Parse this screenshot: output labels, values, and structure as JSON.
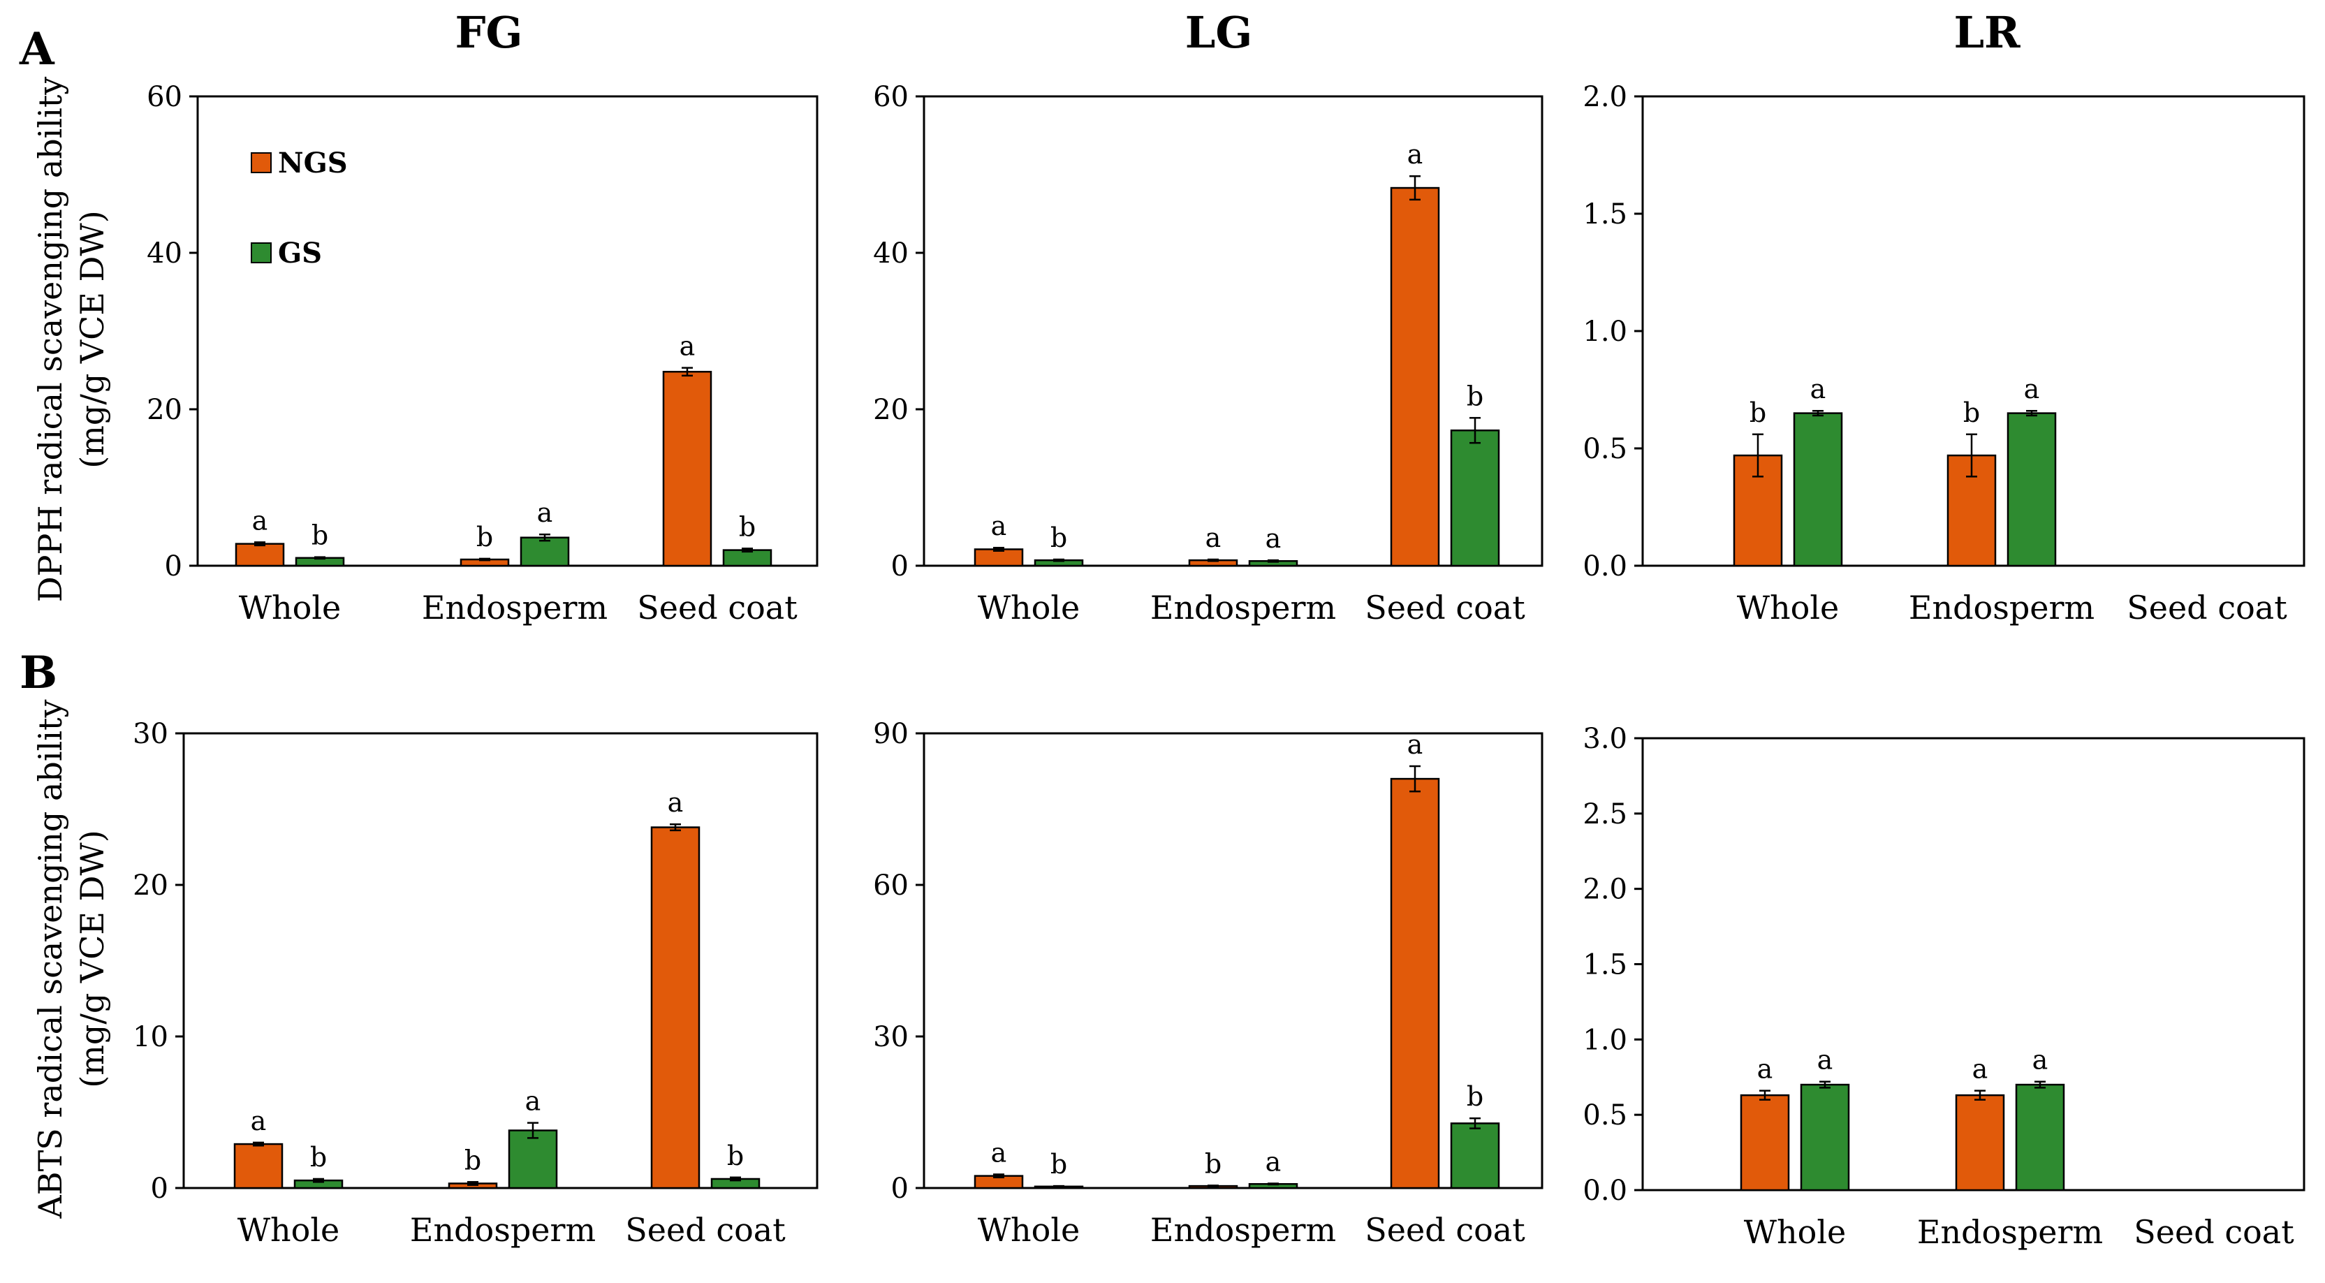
{
  "columns": [
    "FG",
    "LG",
    "LR"
  ],
  "panels": [
    "A",
    "B"
  ],
  "colors": {
    "NGS": "#E15A0A",
    "GS": "#2E8B30"
  },
  "chart_data": [
    {
      "type": "bar",
      "panel": "A",
      "column": "FG",
      "title": "FG",
      "categories": [
        "Whole",
        "Endosperm",
        "Seed coat"
      ],
      "ylabel": [
        "DPPH radical scavenging ability",
        "(mg/g VCE DW)"
      ],
      "ylim": [
        0,
        60
      ],
      "yticks": [
        "0",
        "20",
        "40",
        "60"
      ],
      "yticks_values": [
        0,
        20,
        40,
        60
      ],
      "legend": {
        "placement": "top-left",
        "entries": [
          "NGS",
          "GS"
        ]
      },
      "series": [
        {
          "name": "NGS",
          "values": [
            2.8,
            0.8,
            24.8
          ],
          "errors": [
            0.2,
            0.1,
            0.5
          ],
          "letters": [
            "a",
            "b",
            "a"
          ]
        },
        {
          "name": "GS",
          "values": [
            1.0,
            3.6,
            2.0
          ],
          "errors": [
            0.1,
            0.4,
            0.2
          ],
          "letters": [
            "b",
            "a",
            "b"
          ]
        }
      ]
    },
    {
      "type": "bar",
      "panel": "A",
      "column": "LG",
      "title": "LG",
      "categories": [
        "Whole",
        "Endosperm",
        "Seed coat"
      ],
      "ylim": [
        0,
        60
      ],
      "yticks": [
        "0",
        "20",
        "40",
        "60"
      ],
      "yticks_values": [
        0,
        20,
        40,
        60
      ],
      "series": [
        {
          "name": "NGS",
          "values": [
            2.1,
            0.7,
            48.3
          ],
          "errors": [
            0.2,
            0.1,
            1.5
          ],
          "letters": [
            "a",
            "a",
            "a"
          ]
        },
        {
          "name": "GS",
          "values": [
            0.7,
            0.6,
            17.3
          ],
          "errors": [
            0.1,
            0.1,
            1.6
          ],
          "letters": [
            "b",
            "a",
            "b"
          ]
        }
      ]
    },
    {
      "type": "bar",
      "panel": "A",
      "column": "LR",
      "title": "LR",
      "categories": [
        "Whole",
        "Endosperm",
        "Seed coat"
      ],
      "ylim": [
        0,
        2.0
      ],
      "yticks": [
        "0.0",
        "0.5",
        "1.0",
        "1.5",
        "2.0"
      ],
      "yticks_values": [
        0,
        0.5,
        1.0,
        1.5,
        2.0
      ],
      "series": [
        {
          "name": "NGS",
          "values": [
            0.47,
            0.47,
            null
          ],
          "errors": [
            0.09,
            0.09,
            null
          ],
          "letters": [
            "b",
            "b",
            ""
          ]
        },
        {
          "name": "GS",
          "values": [
            0.65,
            0.65,
            null
          ],
          "errors": [
            0.01,
            0.01,
            null
          ],
          "letters": [
            "a",
            "a",
            ""
          ]
        }
      ]
    },
    {
      "type": "bar",
      "panel": "B",
      "column": "FG",
      "categories": [
        "Whole",
        "Endosperm",
        "Seed coat"
      ],
      "ylabel": [
        "ABTS radical scavenging ability",
        "(mg/g VCE DW)"
      ],
      "ylim": [
        0,
        30
      ],
      "yticks": [
        "0",
        "10",
        "20",
        "30"
      ],
      "yticks_values": [
        0,
        10,
        20,
        30
      ],
      "series": [
        {
          "name": "NGS",
          "values": [
            2.9,
            0.3,
            23.8
          ],
          "errors": [
            0.1,
            0.1,
            0.2
          ],
          "letters": [
            "a",
            "b",
            "a"
          ]
        },
        {
          "name": "GS",
          "values": [
            0.5,
            3.8,
            0.6
          ],
          "errors": [
            0.1,
            0.5,
            0.1
          ],
          "letters": [
            "b",
            "a",
            "b"
          ]
        }
      ]
    },
    {
      "type": "bar",
      "panel": "B",
      "column": "LG",
      "categories": [
        "Whole",
        "Endosperm",
        "Seed coat"
      ],
      "ylim": [
        0,
        90
      ],
      "yticks": [
        "0",
        "30",
        "60",
        "90"
      ],
      "yticks_values": [
        0,
        30,
        60,
        90
      ],
      "series": [
        {
          "name": "NGS",
          "values": [
            2.4,
            0.4,
            81.0
          ],
          "errors": [
            0.3,
            0.1,
            2.5
          ],
          "letters": [
            "a",
            "b",
            "a"
          ]
        },
        {
          "name": "GS",
          "values": [
            0.3,
            0.8,
            12.8
          ],
          "errors": [
            0.1,
            0.1,
            1.0
          ],
          "letters": [
            "b",
            "a",
            "b"
          ]
        }
      ]
    },
    {
      "type": "bar",
      "panel": "B",
      "column": "LR",
      "categories": [
        "Whole",
        "Endosperm",
        "Seed coat"
      ],
      "ylim": [
        0,
        3.0
      ],
      "yticks": [
        "0.0",
        "0.5",
        "1.0",
        "1.5",
        "2.0",
        "2.5",
        "3.0"
      ],
      "yticks_values": [
        0,
        0.5,
        1.0,
        1.5,
        2.0,
        2.5,
        3.0
      ],
      "series": [
        {
          "name": "NGS",
          "values": [
            0.63,
            0.63,
            null
          ],
          "errors": [
            0.03,
            0.03,
            null
          ],
          "letters": [
            "a",
            "a",
            ""
          ]
        },
        {
          "name": "GS",
          "values": [
            0.7,
            0.7,
            null
          ],
          "errors": [
            0.02,
            0.02,
            null
          ],
          "letters": [
            "a",
            "a",
            ""
          ]
        }
      ]
    }
  ]
}
